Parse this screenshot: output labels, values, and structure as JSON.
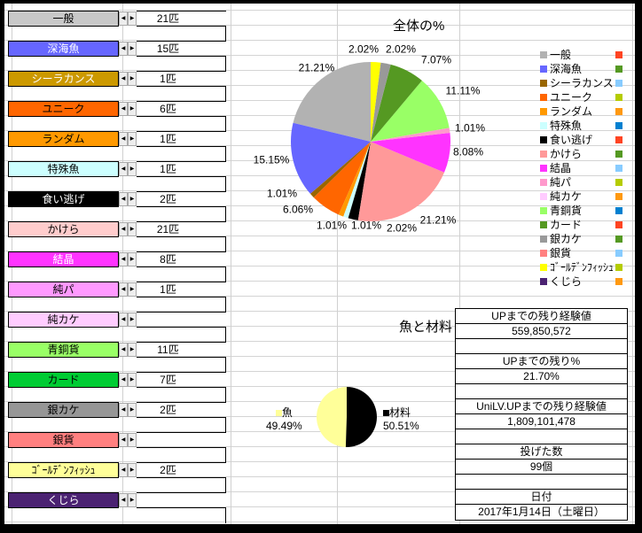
{
  "items": [
    {
      "label": "一般",
      "count": "21匹",
      "bg": "#c8c8c8",
      "fg": "#000000"
    },
    {
      "label": "深海魚",
      "count": "15匹",
      "bg": "#6666ff",
      "fg": "#ffffff"
    },
    {
      "label": "シーラカンス",
      "count": "1匹",
      "bg": "#cc9900",
      "fg": "#ffffff"
    },
    {
      "label": "ユニーク",
      "count": "6匹",
      "bg": "#ff6600",
      "fg": "#000000"
    },
    {
      "label": "ランダム",
      "count": "1匹",
      "bg": "#ff9900",
      "fg": "#000000"
    },
    {
      "label": "特殊魚",
      "count": "1匹",
      "bg": "#ccffff",
      "fg": "#000000"
    },
    {
      "label": "食い逃げ",
      "count": "2匹",
      "bg": "#000000",
      "fg": "#ffffff"
    },
    {
      "label": "かけら",
      "count": "21匹",
      "bg": "#ffcccc",
      "fg": "#000000"
    },
    {
      "label": "結晶",
      "count": "8匹",
      "bg": "#ff33ff",
      "fg": "#ffffff"
    },
    {
      "label": "純パ",
      "count": "1匹",
      "bg": "#ff99ff",
      "fg": "#000000"
    },
    {
      "label": "純カケ",
      "count": "",
      "bg": "#ffccff",
      "fg": "#000000"
    },
    {
      "label": "青銅貨",
      "count": "11匹",
      "bg": "#99ff66",
      "fg": "#000000"
    },
    {
      "label": "カード",
      "count": "7匹",
      "bg": "#00cc33",
      "fg": "#000000"
    },
    {
      "label": "銀カケ",
      "count": "2匹",
      "bg": "#969696",
      "fg": "#000000"
    },
    {
      "label": "銀貨",
      "count": "",
      "bg": "#ff8080",
      "fg": "#000000"
    },
    {
      "label": "ｺﾞｰﾙﾃﾞﾝﾌｨｯｼｭ",
      "count": "2匹",
      "bg": "#ffff99",
      "fg": "#000000"
    },
    {
      "label": "くじら",
      "count": "",
      "bg": "#4b2272",
      "fg": "#ffffff"
    }
  ],
  "legend_markers": [
    "#ff4422",
    "#559922",
    "#88ccff",
    "#b5cc00",
    "#ff9911",
    "#0080d0"
  ],
  "stats": [
    {
      "label": "UPまでの残り経験値",
      "value": "559,850,572"
    },
    {
      "label": "UPまでの残り%",
      "value": "21.70%"
    },
    {
      "label": "UniLV.UPまでの残り経験値",
      "value": "1,809,101,478"
    },
    {
      "label": "投げた数",
      "value": "99個"
    },
    {
      "label": "日付",
      "value": "2017年1月14日（土曜日）"
    }
  ],
  "chart_data": [
    {
      "type": "pie",
      "title": "全体の%",
      "categories": [
        "一般",
        "深海魚",
        "シーラカンス",
        "ユニーク",
        "ランダム",
        "特殊魚",
        "食い逃げ",
        "かけら",
        "結晶",
        "純パ",
        "純カケ",
        "青銅貨",
        "カード",
        "銀カケ",
        "銀貨",
        "ゴールデンフィッシュ",
        "くじら"
      ],
      "values": [
        21.21,
        15.15,
        1.01,
        6.06,
        1.01,
        1.01,
        2.02,
        21.21,
        8.08,
        1.01,
        0,
        11.11,
        7.07,
        2.02,
        0,
        2.02,
        0
      ],
      "labels": [
        "21.21%",
        "15.15%",
        "1.01%",
        "6.06%",
        "1.01%",
        "1.01%",
        "2.02%",
        "21.21%",
        "8.08%",
        "1.01%",
        "",
        "11.11%",
        "7.07%",
        "2.02%",
        "",
        "2.02%",
        ""
      ],
      "colors": [
        "#b2b2b2",
        "#6666ff",
        "#996600",
        "#ff6600",
        "#ff9900",
        "#ccffff",
        "#000000",
        "#ff9999",
        "#ff33ff",
        "#ff99cc",
        "#ffccff",
        "#99ff66",
        "#559922",
        "#999999",
        "#ff8080",
        "#ffff00",
        "#4b2272"
      ],
      "legend": "right"
    },
    {
      "type": "pie",
      "title": "魚と材料",
      "categories": [
        "魚",
        "材料"
      ],
      "values": [
        49.49,
        50.51
      ],
      "labels": [
        "49.49%",
        "50.51%"
      ],
      "colors": [
        "#ffff99",
        "#000000"
      ],
      "legend": "sides"
    }
  ]
}
